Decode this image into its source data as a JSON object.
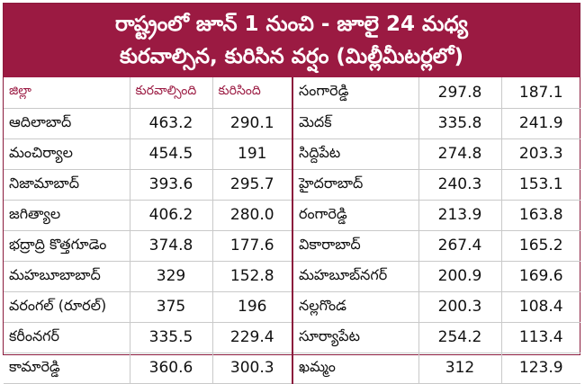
{
  "title": {
    "line1": "రాష్ట్రంలో జూన్ 1 నుంచి - జూలై 24 మధ్య",
    "line2": "కురవాల్సిన, కురిసిన వర్షం (మిల్లీమీటర్లలో)"
  },
  "columns": [
    "జిల్లా",
    "కురవాల్సింది",
    "కురిసింది"
  ],
  "left_rows": [
    {
      "district": "ఆదిలాబాద్",
      "expected": "463.2",
      "actual": "290.1"
    },
    {
      "district": "మంచిర్యాల",
      "expected": "454.5",
      "actual": "191"
    },
    {
      "district": "నిజామాబాద్",
      "expected": "393.6",
      "actual": "295.7"
    },
    {
      "district": "జగిత్యాల",
      "expected": "406.2",
      "actual": "280.0"
    },
    {
      "district": "భద్రాద్రి కొత్తగూడెం",
      "expected": "374.8",
      "actual": "177.6"
    },
    {
      "district": "మహబూబాబాద్",
      "expected": "329",
      "actual": "152.8"
    },
    {
      "district": "వరంగల్ (రూరల్)",
      "expected": "375",
      "actual": "196"
    },
    {
      "district": "కరీంనగర్",
      "expected": "335.5",
      "actual": "229.4"
    },
    {
      "district": "కామారెడ్డి",
      "expected": "360.6",
      "actual": "300.3"
    }
  ],
  "right_rows": [
    {
      "district": "సంగారెడ్డి",
      "expected": "297.8",
      "actual": "187.1"
    },
    {
      "district": "మెదక్",
      "expected": "335.8",
      "actual": "241.9"
    },
    {
      "district": "సిద్దిపేట",
      "expected": "274.8",
      "actual": "203.3"
    },
    {
      "district": "హైదరాబాద్",
      "expected": "240.3",
      "actual": "153.1"
    },
    {
      "district": "రంగారెడ్డి",
      "expected": "213.9",
      "actual": "163.8"
    },
    {
      "district": "వికారాబాద్",
      "expected": "267.4",
      "actual": "165.2"
    },
    {
      "district": "మహబూబ్‌నగర్",
      "expected": "200.9",
      "actual": "169.6"
    },
    {
      "district": "నల్లగొండ",
      "expected": "200.3",
      "actual": "108.4"
    },
    {
      "district": "సూర్యాపేట",
      "expected": "254.2",
      "actual": "113.4"
    },
    {
      "district": "ఖమ్మం",
      "expected": "312",
      "actual": "123.9"
    }
  ],
  "colors": {
    "header_bg": "#9b1a42",
    "header_text": "#ffffff",
    "column_header_text": "#9b1a42"
  }
}
